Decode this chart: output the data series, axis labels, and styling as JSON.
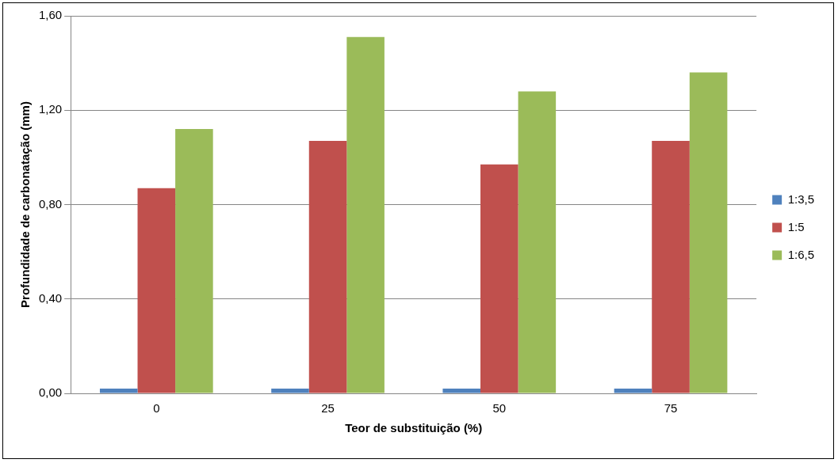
{
  "chart_data": {
    "type": "bar",
    "xlabel": "Teor de substituição (%)",
    "ylabel": "Profundidade de carbonatação (mm)",
    "categories": [
      "0",
      "25",
      "50",
      "75"
    ],
    "series": [
      {
        "name": "1:3,5",
        "color": "#4f81bd",
        "values": [
          0.02,
          0.02,
          0.02,
          0.02
        ]
      },
      {
        "name": "1:5",
        "color": "#c0504d",
        "values": [
          0.87,
          1.07,
          0.97,
          1.07
        ]
      },
      {
        "name": "1:6,5",
        "color": "#9bbb59",
        "values": [
          1.12,
          1.51,
          1.28,
          1.36
        ]
      }
    ],
    "ylim": [
      0,
      1.6
    ],
    "yticks": [
      {
        "value": 0,
        "label": "0,00"
      },
      {
        "value": 0.4,
        "label": "0,40"
      },
      {
        "value": 0.8,
        "label": "0,80"
      },
      {
        "value": 1.2,
        "label": "1,20"
      },
      {
        "value": 1.6,
        "label": "1,60"
      }
    ],
    "grid": "y",
    "legend": "right"
  }
}
